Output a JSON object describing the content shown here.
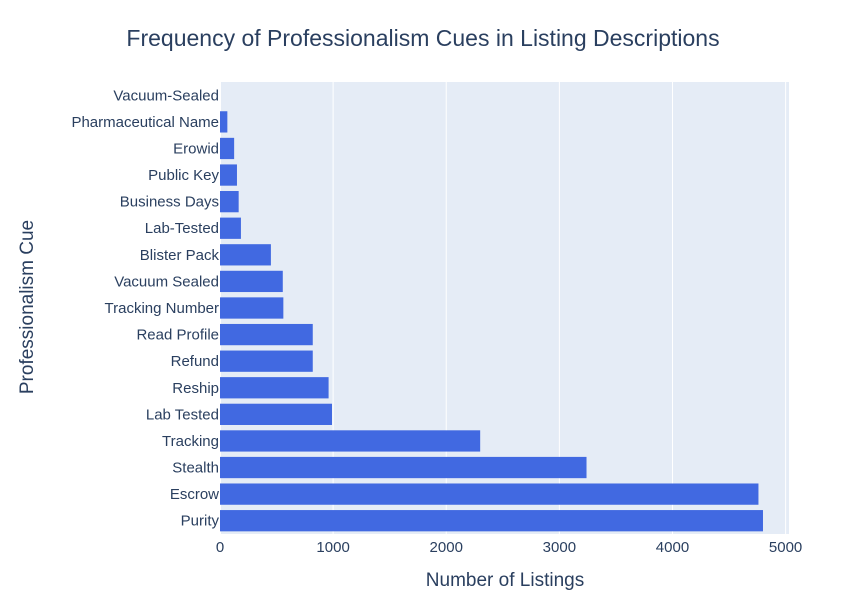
{
  "chart_data": {
    "type": "bar",
    "orientation": "horizontal",
    "title": "Frequency of Professionalism Cues in Listing Descriptions",
    "xlabel": "Number of Listings",
    "ylabel": "Professionalism Cue",
    "xlim": [
      0,
      5030
    ],
    "xticks": [
      0,
      1000,
      2000,
      3000,
      4000,
      5000
    ],
    "grid": true,
    "bar_color": "#4169e1",
    "plot_bg": "#e5ecf6",
    "categories": [
      "Purity",
      "Escrow",
      "Stealth",
      "Tracking",
      "Lab Tested",
      "Reship",
      "Refund",
      "Read Profile",
      "Tracking Number",
      "Vacuum Sealed",
      "Blister Pack",
      "Lab-Tested",
      "Business Days",
      "Public Key",
      "Erowid",
      "Pharmaceutical Name",
      "Vacuum-Sealed"
    ],
    "values": [
      4800,
      4760,
      3240,
      2300,
      990,
      960,
      820,
      820,
      560,
      555,
      450,
      185,
      165,
      150,
      125,
      65,
      0
    ]
  }
}
